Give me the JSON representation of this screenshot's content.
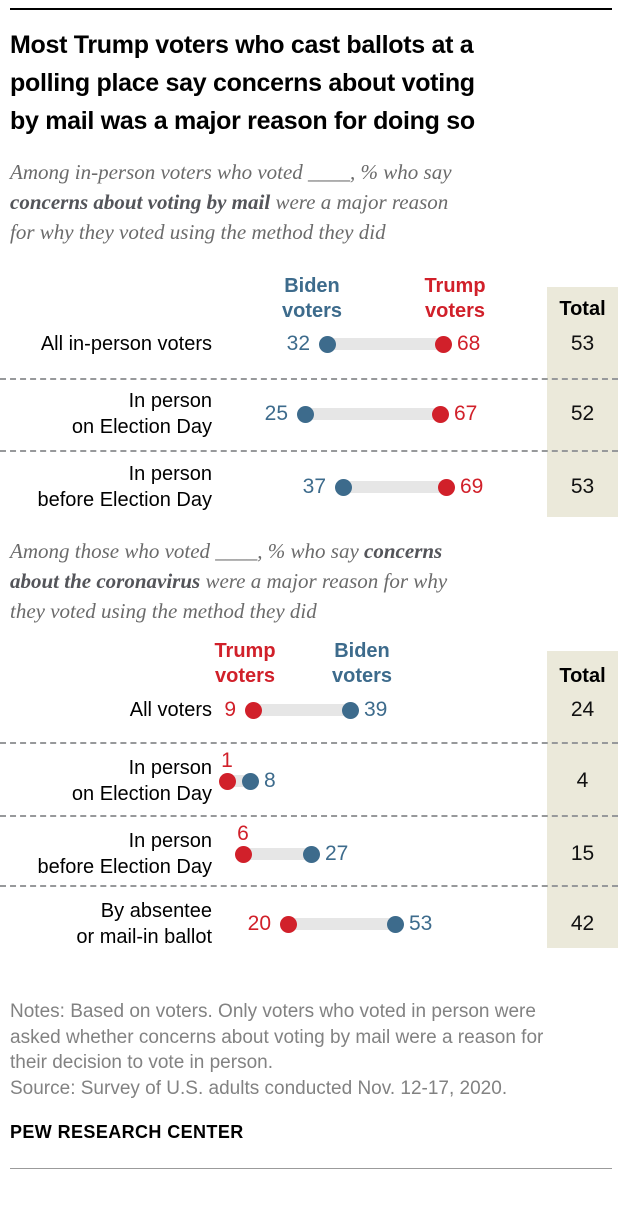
{
  "page": {
    "title": "Most Trump voters who cast ballots at a polling place say concerns about voting by mail was a major reason for doing so",
    "title_lines": [
      "Most Trump voters who cast ballots at a",
      "polling place say concerns about voting",
      "by mail was a major reason for doing so"
    ],
    "subtitle1": {
      "text": "Among in-person voters who voted ____, % who say concerns about voting by mail were a major reason for why they voted using the method they did",
      "lines": [
        [
          {
            "text": "Among in-person voters who voted ____, % who say",
            "bold": false
          }
        ],
        [
          {
            "text": "concerns about voting by mail",
            "bold": true
          },
          {
            "text": " were a major reason",
            "bold": false
          }
        ],
        [
          {
            "text": "for why they voted using the method they did",
            "bold": false
          }
        ]
      ]
    },
    "subtitle2": {
      "text": "Among those who voted ____, % who say concerns about the coronavirus were a major reason for why they voted using the method they did",
      "lines": [
        [
          {
            "text": "Among those who voted ____, % who say ",
            "bold": false
          },
          {
            "text": "concerns",
            "bold": true
          }
        ],
        [
          {
            "text": "about the coronavirus",
            "bold": true
          },
          {
            "text": " were a major reason for why",
            "bold": false
          }
        ],
        [
          {
            "text": "they voted using the method they did",
            "bold": false
          }
        ]
      ]
    },
    "notes": "Notes: Based on voters. Only voters who voted in person were asked whether concerns about voting by mail were a reason for their decision to vote in person.",
    "source": "Source: Survey of U.S. adults conducted Nov. 12-17, 2020.",
    "brand": "PEW RESEARCH CENTER"
  },
  "colors": {
    "biden_blue": "#3d6b8c",
    "trump_red": "#d1202a",
    "connector_gray": "#e6e6e6",
    "total_column_bg": "#ebe9da",
    "separator_gray": "#97999b",
    "subtitle_gray": "#6b6b6b",
    "notes_gray": "#828282",
    "text_black": "#000000"
  },
  "chart_data": [
    {
      "type": "dumbbell",
      "question_bold": "concerns about voting by mail",
      "value_unit": "%",
      "total_label": "Total",
      "columns": [
        {
          "party": "biden",
          "label_lines": [
            "Biden",
            "voters"
          ]
        },
        {
          "party": "trump",
          "label_lines": [
            "Trump",
            "voters"
          ]
        }
      ],
      "rows": [
        {
          "label_lines": [
            "All in-person voters"
          ],
          "points": [
            {
              "party": "biden",
              "value": 32,
              "label_pos": "left"
            },
            {
              "party": "trump",
              "value": 68,
              "label_pos": "right"
            }
          ],
          "total": 53
        },
        {
          "label_lines": [
            "In person",
            "on Election Day"
          ],
          "points": [
            {
              "party": "biden",
              "value": 25,
              "label_pos": "left"
            },
            {
              "party": "trump",
              "value": 67,
              "label_pos": "right"
            }
          ],
          "total": 52
        },
        {
          "label_lines": [
            "In person",
            "before Election Day"
          ],
          "points": [
            {
              "party": "biden",
              "value": 37,
              "label_pos": "left"
            },
            {
              "party": "trump",
              "value": 69,
              "label_pos": "right"
            }
          ],
          "total": 53
        }
      ]
    },
    {
      "type": "dumbbell",
      "question_bold": "concerns about the coronavirus",
      "value_unit": "%",
      "total_label": "Total",
      "columns": [
        {
          "party": "trump",
          "label_lines": [
            "Trump",
            "voters"
          ]
        },
        {
          "party": "biden",
          "label_lines": [
            "Biden",
            "voters"
          ]
        }
      ],
      "rows": [
        {
          "label_lines": [
            "All voters"
          ],
          "points": [
            {
              "party": "trump",
              "value": 9,
              "label_pos": "left"
            },
            {
              "party": "biden",
              "value": 39,
              "label_pos": "right"
            }
          ],
          "total": 24
        },
        {
          "label_lines": [
            "In person",
            "on Election Day"
          ],
          "points": [
            {
              "party": "trump",
              "value": 1,
              "label_pos": "above"
            },
            {
              "party": "biden",
              "value": 8,
              "label_pos": "right"
            }
          ],
          "total": 4
        },
        {
          "label_lines": [
            "In person",
            "before Election Day"
          ],
          "points": [
            {
              "party": "trump",
              "value": 6,
              "label_pos": "above"
            },
            {
              "party": "biden",
              "value": 27,
              "label_pos": "right"
            }
          ],
          "total": 15
        },
        {
          "label_lines": [
            "By absentee",
            "or mail-in ballot"
          ],
          "points": [
            {
              "party": "trump",
              "value": 20,
              "label_pos": "left"
            },
            {
              "party": "biden",
              "value": 53,
              "label_pos": "right"
            }
          ],
          "total": 42
        }
      ]
    }
  ]
}
